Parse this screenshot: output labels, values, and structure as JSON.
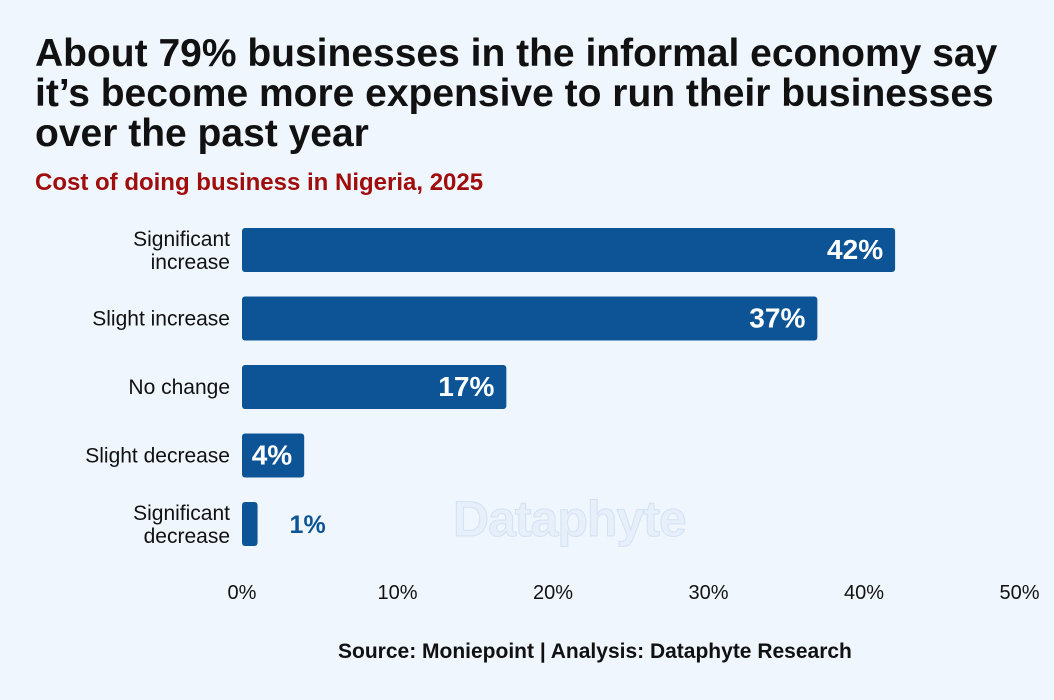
{
  "title": "About 79% businesses in the informal economy say it’s become more expensive to run their businesses over the past year",
  "subtitle": "Cost of doing business in Nigeria, 2025",
  "source": "Source: Moniepoint | Analysis: Dataphyte Research",
  "watermark": "Dataphyte",
  "colors": {
    "bar": "#0d5496",
    "label_outside": "#0d5496",
    "label_inside": "#ffffff"
  },
  "chart_data": {
    "type": "bar",
    "orientation": "horizontal",
    "title": "About 79% businesses in the informal economy say it’s become more expensive to run their businesses over the past year",
    "subtitle": "Cost of doing business in Nigeria, 2025",
    "categories": [
      [
        "Significant",
        "increase"
      ],
      [
        "Slight increase"
      ],
      [
        "No change"
      ],
      [
        "Slight decrease"
      ],
      [
        "Significant",
        "decrease"
      ]
    ],
    "values": [
      42,
      37,
      17,
      4,
      1
    ],
    "value_labels": [
      "42%",
      "37%",
      "17%",
      "4%",
      "1%"
    ],
    "xlim": [
      0,
      50
    ],
    "xticks": [
      0,
      10,
      20,
      30,
      40,
      50
    ],
    "xtick_labels": [
      "0%",
      "10%",
      "20%",
      "30%",
      "40%",
      "50%"
    ],
    "xlabel": "",
    "ylabel": "",
    "grid": false,
    "legend": "none"
  }
}
